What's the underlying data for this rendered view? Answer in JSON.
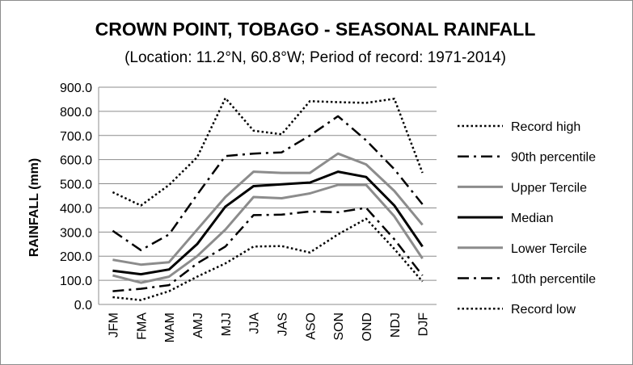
{
  "chart_data": {
    "type": "line",
    "title": "CROWN POINT, TOBAGO - SEASONAL RAINFALL",
    "subtitle": "(Location: 11.2°N, 60.8°W; Period of record: 1971-2014)",
    "ylabel": "RAINFALL (mm)",
    "xlabel": "",
    "ylim": [
      0,
      900
    ],
    "yticks": [
      "0.0",
      "100.0",
      "200.0",
      "300.0",
      "400.0",
      "500.0",
      "600.0",
      "700.0",
      "800.0",
      "900.0"
    ],
    "grid": "horizontal",
    "legend_position": "right",
    "categories": [
      "JFM",
      "FMA",
      "MAM",
      "AMJ",
      "MJJ",
      "JJA",
      "JAS",
      "ASO",
      "SON",
      "OND",
      "NDJ",
      "DJF"
    ],
    "series": [
      {
        "name": "Record high",
        "style": "dotted",
        "color": "#000000",
        "values": [
          465,
          410,
          495,
          610,
          855,
          720,
          705,
          842,
          838,
          835,
          852,
          545
        ]
      },
      {
        "name": "90th percentile",
        "style": "dashdot",
        "color": "#000000",
        "values": [
          305,
          225,
          290,
          455,
          615,
          625,
          630,
          700,
          780,
          680,
          560,
          415
        ]
      },
      {
        "name": "Upper Tercile",
        "style": "solid",
        "color": "#8c8c8c",
        "values": [
          185,
          165,
          175,
          310,
          445,
          550,
          545,
          545,
          625,
          580,
          470,
          330
        ]
      },
      {
        "name": "Median",
        "style": "solid",
        "color": "#000000",
        "values": [
          140,
          125,
          145,
          250,
          405,
          490,
          498,
          505,
          550,
          528,
          410,
          240
        ]
      },
      {
        "name": "Lower Tercile",
        "style": "solid",
        "color": "#8c8c8c",
        "values": [
          120,
          90,
          115,
          200,
          310,
          445,
          440,
          460,
          495,
          495,
          365,
          190
        ]
      },
      {
        "name": "10th percentile",
        "style": "dashdot",
        "color": "#000000",
        "values": [
          55,
          65,
          80,
          170,
          240,
          370,
          372,
          385,
          382,
          400,
          270,
          120
        ]
      },
      {
        "name": "Record low",
        "style": "dotted",
        "color": "#000000",
        "values": [
          30,
          18,
          55,
          115,
          170,
          240,
          242,
          215,
          290,
          355,
          230,
          95
        ]
      }
    ]
  }
}
